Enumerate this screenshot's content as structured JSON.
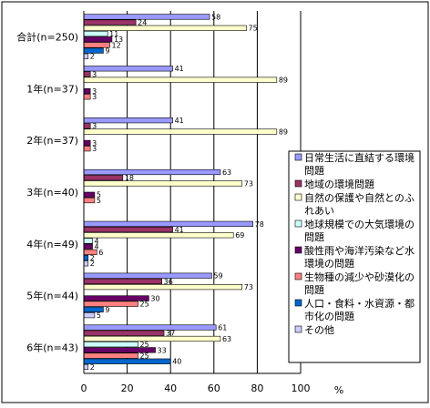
{
  "chart_data": {
    "type": "bar",
    "orientation": "horizontal",
    "xlabel": "%",
    "xlim": [
      0,
      100
    ],
    "xticks": [
      "0",
      "20",
      "40",
      "60",
      "80",
      "100"
    ],
    "categories": [
      "合計(n=250)",
      "1年(n=37)",
      "2年(n=37)",
      "3年(n=40)",
      "4年(n=49)",
      "5年(n=44)",
      "6年(n=43)"
    ],
    "series": [
      {
        "name": "日常生活に直結する環境問題",
        "color": "#9999ff",
        "values": [
          58,
          41,
          41,
          63,
          78,
          59,
          61
        ]
      },
      {
        "name": "地域の環境問題",
        "color": "#993366",
        "values": [
          24,
          3,
          3,
          18,
          41,
          36,
          37
        ]
      },
      {
        "name": "自然の保護や自然とのふれあい",
        "color": "#ffffcc",
        "values": [
          75,
          89,
          89,
          73,
          69,
          73,
          63
        ]
      },
      {
        "name": "地球規模での大気環境の問題",
        "color": "#ccffff",
        "values": [
          11,
          0,
          0,
          0,
          4,
          0,
          25
        ]
      },
      {
        "name": "酸性雨や海洋汚染など水環境の問題",
        "color": "#660066",
        "values": [
          13,
          3,
          3,
          5,
          4,
          30,
          33
        ]
      },
      {
        "name": "生物種の減少や砂漠化の問題",
        "color": "#ff8080",
        "values": [
          12,
          3,
          3,
          5,
          6,
          25,
          25
        ]
      },
      {
        "name": "人口・食料・水資源・都市化の問題",
        "color": "#0066cc",
        "values": [
          9,
          0,
          0,
          0,
          2,
          9,
          40
        ]
      },
      {
        "name": "その他",
        "color": "#ccccff",
        "values": [
          2,
          0,
          0,
          0,
          2,
          5,
          2
        ]
      }
    ],
    "value_labels": [
      [
        "58",
        "24",
        "75",
        "11",
        "13",
        "12",
        "9",
        "2"
      ],
      [
        "41",
        "3",
        "89",
        "",
        "3",
        "3",
        "",
        ""
      ],
      [
        "41",
        "3",
        "89",
        "",
        "3",
        "3",
        "",
        ""
      ],
      [
        "63",
        "18",
        "73",
        "",
        "5",
        "5",
        "",
        ""
      ],
      [
        "78",
        "41",
        "69",
        "4",
        "4",
        "6",
        "2",
        "2"
      ],
      [
        "59",
        "36",
        "73",
        "",
        "30",
        "25",
        "9",
        "5"
      ],
      [
        "61",
        "37",
        "63",
        "25",
        "33",
        "25",
        "40",
        "2"
      ]
    ],
    "legend_position": "right",
    "grid": "vertical"
  }
}
